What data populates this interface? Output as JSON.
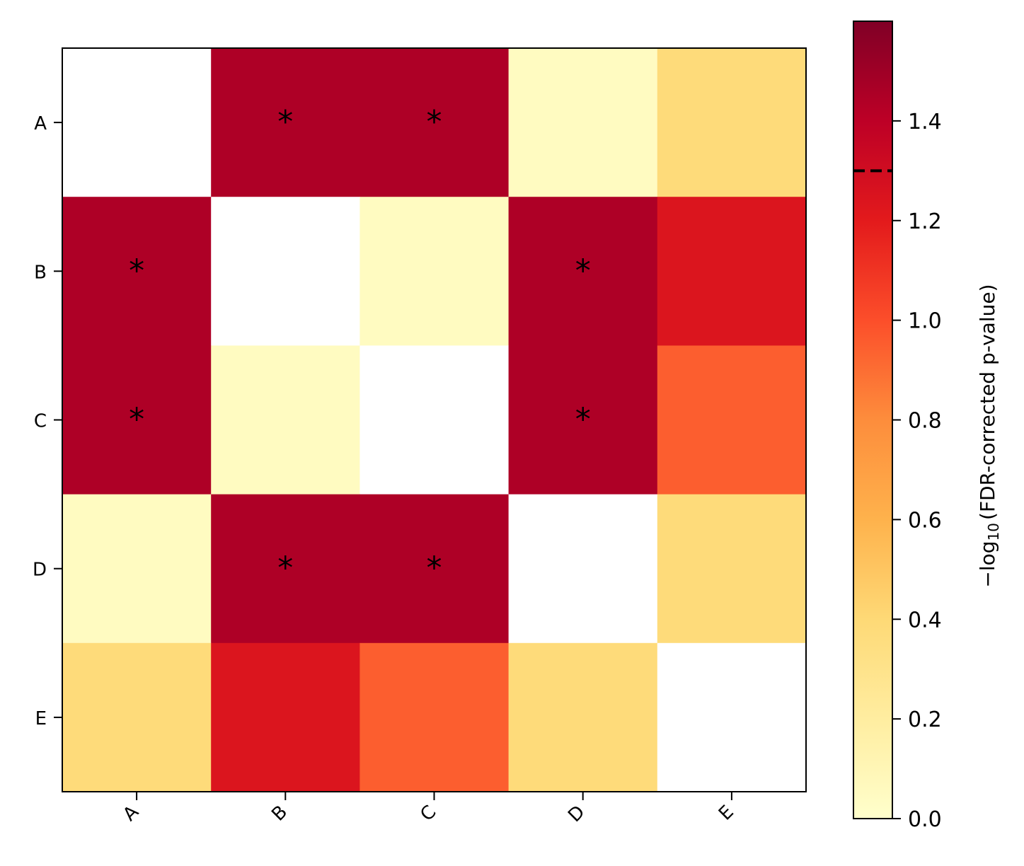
{
  "chart_data": {
    "type": "heatmap",
    "x_labels": [
      "A",
      "B",
      "C",
      "D",
      "E"
    ],
    "y_labels": [
      "A",
      "B",
      "C",
      "D",
      "E"
    ],
    "values": [
      [
        null,
        1.45,
        1.45,
        0.05,
        0.38
      ],
      [
        1.45,
        null,
        0.05,
        1.45,
        1.24
      ],
      [
        1.45,
        0.05,
        null,
        1.45,
        0.95
      ],
      [
        0.05,
        1.45,
        1.45,
        null,
        0.38
      ],
      [
        0.38,
        1.24,
        0.95,
        0.38,
        null
      ]
    ],
    "significant": [
      [
        false,
        true,
        true,
        false,
        false
      ],
      [
        true,
        false,
        false,
        true,
        false
      ],
      [
        true,
        false,
        false,
        true,
        false
      ],
      [
        false,
        true,
        true,
        false,
        false
      ],
      [
        false,
        false,
        false,
        false,
        false
      ]
    ],
    "annotation_symbol": "*",
    "colorbar": {
      "label_prefix": "−log",
      "label_subscript": "10",
      "label_suffix": "(FDR-corrected p-value)",
      "range": [
        0,
        1.6
      ],
      "ticks": [
        0.0,
        0.2,
        0.4,
        0.6,
        0.8,
        1.0,
        1.2,
        1.4
      ],
      "tick_labels": [
        "0.0",
        "0.2",
        "0.4",
        "0.6",
        "0.8",
        "1.0",
        "1.2",
        "1.4"
      ],
      "threshold": 1.3,
      "threshold_style": "dashed",
      "colormap": "YlOrRd",
      "colormap_stops": [
        "#ffffcc",
        "#ffeda0",
        "#fed976",
        "#feb24c",
        "#fd8d3c",
        "#fc4e2a",
        "#e31a1c",
        "#bd0026",
        "#800026"
      ]
    },
    "diagonal_color": "#ffffff"
  }
}
